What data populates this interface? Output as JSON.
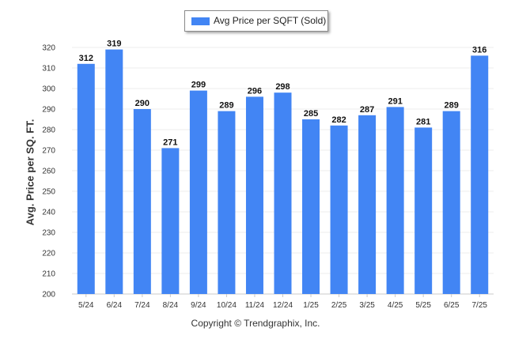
{
  "chart_data": {
    "type": "bar",
    "categories": [
      "5/24",
      "6/24",
      "7/24",
      "8/24",
      "9/24",
      "10/24",
      "11/24",
      "12/24",
      "1/25",
      "2/25",
      "3/25",
      "4/25",
      "5/25",
      "6/25",
      "7/25"
    ],
    "series": [
      {
        "name": "Avg Price per SQFT (Sold)",
        "values": [
          312,
          319,
          290,
          271,
          299,
          289,
          296,
          298,
          285,
          282,
          287,
          291,
          281,
          289,
          316
        ]
      }
    ],
    "ylabel": "Avg. Price per SQ. FT.",
    "xlabel": "",
    "ylim": [
      200,
      320
    ],
    "yticks": [
      200,
      210,
      220,
      230,
      240,
      250,
      260,
      270,
      280,
      290,
      300,
      310,
      320
    ],
    "grid": true,
    "legend": "top-center",
    "bar_color": "#4285f4"
  },
  "footer": {
    "copyright": "Copyright © Trendgraphix, Inc."
  }
}
